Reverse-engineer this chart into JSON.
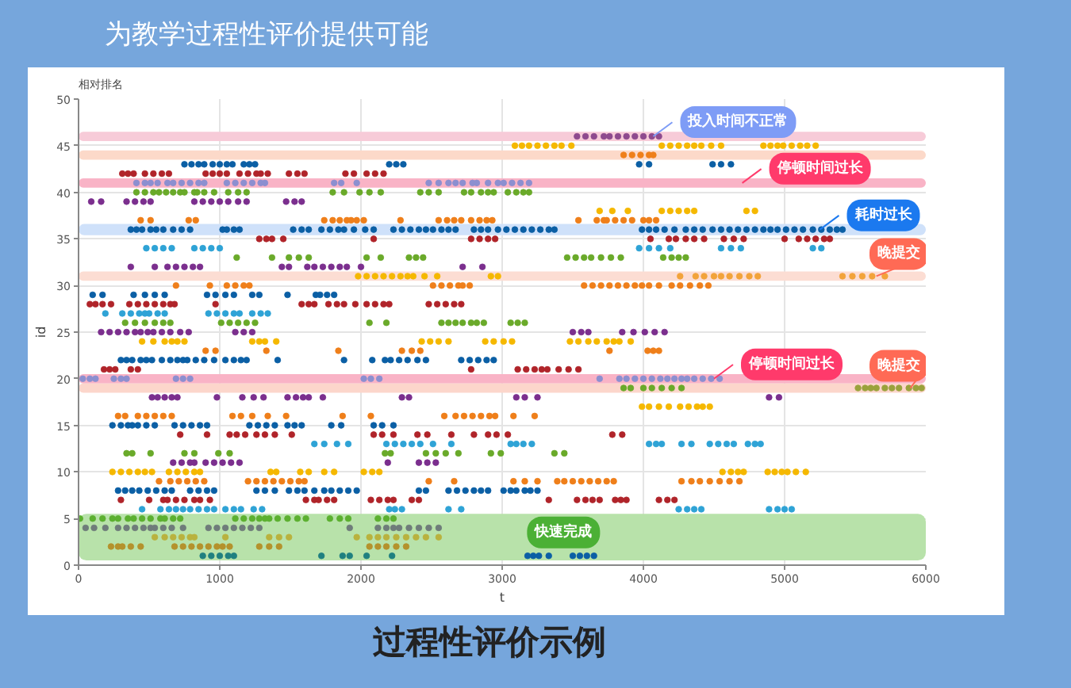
{
  "chart_data": {
    "type": "scatter",
    "title": "为教学过程性评价提供可能",
    "subtitle": "相对排名",
    "xlabel": "t",
    "ylabel": "id",
    "xlim": [
      0,
      6000
    ],
    "ylim": [
      0,
      50
    ],
    "xticks": [
      0,
      1000,
      2000,
      3000,
      4000,
      5000,
      6000
    ],
    "yticks": [
      0,
      5,
      10,
      15,
      20,
      25,
      30,
      35,
      40,
      45,
      50
    ],
    "grid": true,
    "marker": "circle",
    "bands": [
      {
        "axis": "y",
        "from": 45.5,
        "to": 46.5,
        "color": "#f7cbd8"
      },
      {
        "axis": "y",
        "from": 43.5,
        "to": 44.5,
        "color": "#fcd9c9"
      },
      {
        "axis": "y",
        "from": 40.5,
        "to": 41.5,
        "color": "#f9b3c6"
      },
      {
        "axis": "y",
        "from": 35.4,
        "to": 36.6,
        "color": "#cfe1fa"
      },
      {
        "axis": "y",
        "from": 30.5,
        "to": 31.5,
        "color": "#fcddd3"
      },
      {
        "axis": "y",
        "from": 19.5,
        "to": 20.5,
        "color": "#f9b3c6"
      },
      {
        "axis": "y",
        "from": 18.5,
        "to": 19.5,
        "color": "#fcd6cb"
      },
      {
        "axis": "y",
        "from": 0.5,
        "to": 5.5,
        "color": "#b8e2aa",
        "label": "快速完成"
      }
    ],
    "annotations": [
      {
        "text": "投入时间不正常",
        "x": 4070,
        "y": 46
      },
      {
        "text": "停顿时间过长",
        "x": 4700,
        "y": 41
      },
      {
        "text": "耗时过长",
        "x": 5250,
        "y": 36
      },
      {
        "text": "晚提交",
        "x": 5650,
        "y": 31
      },
      {
        "text": "停顿时间过长",
        "x": 4500,
        "y": 20
      },
      {
        "text": "晚提交",
        "x": 5890,
        "y": 19
      },
      "过程性评价示例"
    ],
    "series": [
      {
        "color": "#8e4a8e",
        "x": [
          3530,
          3590,
          3650,
          3720,
          3760,
          3820,
          3880,
          3940,
          4000,
          4060,
          4110
        ],
        "values": [
          46,
          46,
          46,
          46,
          46,
          46,
          46,
          46,
          46,
          46,
          46
        ]
      },
      {
        "color": "#f5b800",
        "x": [
          3090,
          3140,
          3190,
          3250,
          3310,
          3370,
          3420,
          3490,
          4130,
          4190,
          4250,
          4310,
          4360,
          4410,
          4480,
          4550,
          4850,
          4900,
          4950,
          4990,
          5050,
          5110,
          5160,
          5220
        ],
        "values": [
          45,
          45,
          45,
          45,
          45,
          45,
          45,
          45,
          45,
          45,
          45,
          45,
          45,
          45,
          45,
          45,
          45,
          45,
          45,
          45,
          45,
          45,
          45,
          45
        ]
      },
      {
        "color": "#ef7f1a",
        "x": [
          3860,
          3920,
          3980,
          4040,
          4070
        ],
        "values": [
          44,
          44,
          44,
          44,
          44
        ]
      },
      {
        "color": "#0b5fa5",
        "x": [
          750,
          800,
          850,
          890,
          950,
          1000,
          1050,
          1090,
          1170,
          1210,
          1250,
          2200,
          2250,
          2300,
          3970,
          4040,
          4490,
          4550,
          4620
        ],
        "values": [
          43,
          43,
          43,
          43,
          43,
          43,
          43,
          43,
          43,
          43,
          43,
          43,
          43,
          43,
          43,
          43,
          43,
          43,
          43
        ]
      },
      {
        "color": "#b0242a",
        "x": [
          310,
          350,
          390,
          470,
          530,
          590,
          640,
          900,
          950,
          1000,
          1050,
          1140,
          1200,
          1260,
          1290,
          1340,
          1490,
          1550,
          1600,
          1890,
          1950,
          2040,
          2100,
          2160
        ],
        "values": [
          42,
          42,
          42,
          42,
          42,
          42,
          42,
          42,
          42,
          42,
          42,
          42,
          42,
          42,
          42,
          42,
          42,
          42,
          42,
          42,
          42,
          42,
          42,
          42
        ]
      },
      {
        "color": "#8c8fd0",
        "x": [
          410,
          470,
          510,
          560,
          630,
          670,
          730,
          790,
          850,
          890,
          1050,
          1110,
          1170,
          1230,
          1290,
          1320,
          1810,
          1860,
          1970,
          2480,
          2550,
          2620,
          2670,
          2720,
          2790,
          2820,
          2900,
          2970,
          3010,
          3070,
          3130,
          3190
        ],
        "values": [
          41,
          41,
          41,
          41,
          41,
          41,
          41,
          41,
          41,
          41,
          41,
          41,
          41,
          41,
          41,
          41,
          41,
          41,
          41,
          41,
          41,
          41,
          41,
          41,
          41,
          41,
          41,
          41,
          41,
          41,
          41,
          41
        ]
      },
      {
        "color": "#6aaa2a",
        "x": [
          410,
          470,
          530,
          570,
          620,
          670,
          720,
          750,
          820,
          840,
          890,
          960,
          1060,
          1130,
          1190,
          1800,
          1880,
          1990,
          2060,
          2140,
          2420,
          2480,
          2550,
          2730,
          2780,
          2850,
          2900,
          2940,
          3040,
          3100,
          3150,
          3190
        ],
        "values": [
          40,
          40,
          40,
          40,
          40,
          40,
          40,
          40,
          40,
          40,
          40,
          40,
          40,
          40,
          40,
          40,
          40,
          40,
          40,
          40,
          40,
          40,
          40,
          40,
          40,
          40,
          40,
          40,
          40,
          40,
          40,
          40
        ]
      },
      {
        "color": "#7b2f8e",
        "x": [
          90,
          160,
          340,
          400,
          460,
          510,
          820,
          880,
          940,
          1000,
          1060,
          1130,
          1190,
          1470,
          1530,
          1580
        ],
        "values": [
          39,
          39,
          39,
          39,
          39,
          39,
          39,
          39,
          39,
          39,
          39,
          39,
          39,
          39,
          39,
          39
        ]
      },
      {
        "color": "#f5b800",
        "x": [
          3690,
          3780,
          3890,
          4130,
          4190,
          4250,
          4310,
          4360,
          4730,
          4790
        ],
        "values": [
          38,
          38,
          38,
          38,
          38,
          38,
          38,
          38,
          38,
          38
        ]
      },
      {
        "color": "#ef7f1a",
        "x": [
          440,
          510,
          780,
          830,
          1740,
          1800,
          1850,
          1900,
          1930,
          1970,
          2020,
          2280,
          2550,
          2610,
          2660,
          2710,
          2780,
          2840,
          2890,
          2930,
          3540,
          3670,
          3720,
          3740,
          3800,
          3860,
          3920,
          4000,
          4040,
          4090
        ],
        "values": [
          37,
          37,
          37,
          37,
          37,
          37,
          37,
          37,
          37,
          37,
          37,
          37,
          37,
          37,
          37,
          37,
          37,
          37,
          37,
          37,
          37,
          37,
          37,
          37,
          37,
          37,
          37,
          37,
          37,
          37
        ]
      },
      {
        "color": "#0b5fa5",
        "x": [
          370,
          410,
          450,
          510,
          550,
          600,
          670,
          730,
          790,
          1020,
          1050,
          1100,
          1140,
          1520,
          1580,
          1630,
          1720,
          1780,
          1840,
          1880,
          1950,
          2030,
          2090,
          2230,
          2290,
          2350,
          2410,
          2460,
          2510,
          2570,
          2620,
          2670,
          2800,
          2850,
          2900,
          2970,
          3030,
          3090,
          3150,
          3210,
          3270,
          3330,
          3370,
          3990,
          4040,
          4090,
          4150,
          4220,
          4300,
          4360,
          4420,
          4490,
          4550,
          4610,
          4670,
          4730,
          4790,
          4850,
          4900,
          4950,
          5010,
          5070,
          5130,
          5200,
          5260,
          5320,
          5370,
          5410
        ],
        "values": [
          36,
          36,
          36,
          36,
          36,
          36,
          36,
          36,
          36,
          36,
          36,
          36,
          36,
          36,
          36,
          36,
          36,
          36,
          36,
          36,
          36,
          36,
          36,
          36,
          36,
          36,
          36,
          36,
          36,
          36,
          36,
          36,
          36,
          36,
          36,
          36,
          36,
          36,
          36,
          36,
          36,
          36,
          36,
          36,
          36,
          36,
          36,
          36,
          36,
          36,
          36,
          36,
          36,
          36,
          36,
          36,
          36,
          36,
          36,
          36,
          36,
          36,
          36,
          36,
          36,
          36,
          36,
          36
        ]
      },
      {
        "color": "#b0242a",
        "x": [
          1280,
          1330,
          1370,
          1450,
          2090,
          2780,
          2840,
          2900,
          2950,
          4050,
          4180,
          4230,
          4300,
          4360,
          4430,
          4570,
          4640,
          4710,
          5000,
          5100,
          5160,
          5220,
          5280,
          5320
        ],
        "values": [
          35,
          35,
          35,
          35,
          35,
          35,
          35,
          35,
          35,
          35,
          35,
          35,
          35,
          35,
          35,
          35,
          35,
          35,
          35,
          35,
          35,
          35,
          35,
          35
        ]
      },
      {
        "color": "#2fa3d6",
        "x": [
          480,
          540,
          600,
          660,
          820,
          880,
          940,
          1000,
          3970,
          4040,
          4110,
          4190,
          4550,
          4620,
          4690,
          5200,
          5260
        ],
        "values": [
          34,
          34,
          34,
          34,
          34,
          34,
          34,
          34,
          34,
          34,
          34,
          34,
          34,
          34,
          34,
          34,
          34
        ]
      },
      {
        "color": "#6aaa2a",
        "x": [
          1120,
          1370,
          1490,
          1560,
          1630,
          2040,
          2140,
          2340,
          2390,
          2440,
          3460,
          3520,
          3580,
          3630,
          3700,
          3770,
          3840,
          4140,
          4200,
          4250,
          4300
        ],
        "values": [
          33,
          33,
          33,
          33,
          33,
          33,
          33,
          33,
          33,
          33,
          33,
          33,
          33,
          33,
          33,
          33,
          33,
          33,
          33,
          33,
          33
        ]
      },
      {
        "color": "#7b2f8e",
        "x": [
          370,
          540,
          630,
          690,
          750,
          810,
          860,
          1440,
          1490,
          1620,
          1670,
          1730,
          1790,
          1850,
          1900,
          2000,
          2720,
          2860
        ],
        "values": [
          32,
          32,
          32,
          32,
          32,
          32,
          32,
          32,
          32,
          32,
          32,
          32,
          32,
          32,
          32,
          32,
          32,
          32
        ]
      },
      {
        "color": "#f5b800",
        "x": [
          1980,
          2040,
          2100,
          2160,
          2220,
          2280,
          2330,
          2370,
          2450,
          2540,
          2920,
          2970
        ],
        "values": [
          31,
          31,
          31,
          31,
          31,
          31,
          31,
          31,
          31,
          31,
          31,
          31
        ]
      },
      {
        "color": "#f2a33a",
        "x": [
          4260,
          4370,
          4430,
          4500,
          4550,
          4610,
          4680,
          4750,
          4810,
          5410,
          5480,
          5550,
          5620,
          5710
        ],
        "values": [
          31,
          31,
          31,
          31,
          31,
          31,
          31,
          31,
          31,
          31,
          31,
          31,
          31,
          31
        ]
      },
      {
        "color": "#ef7f1a",
        "x": [
          690,
          930,
          1050,
          1110,
          1170,
          1210,
          2510,
          2570,
          2630,
          2690,
          2720,
          2770,
          3580,
          3640,
          3700,
          3760,
          3820,
          3880,
          3940,
          3990,
          4040,
          4110,
          4200,
          4260,
          4330,
          4400,
          4460
        ],
        "values": [
          30,
          30,
          30,
          30,
          30,
          30,
          30,
          30,
          30,
          30,
          30,
          30,
          30,
          30,
          30,
          30,
          30,
          30,
          30,
          30,
          30,
          30,
          30,
          30,
          30,
          30,
          30
        ]
      },
      {
        "color": "#0b5fa5",
        "x": [
          100,
          170,
          390,
          470,
          540,
          610,
          910,
          970,
          1040,
          1100,
          1230,
          1280,
          1480,
          1680,
          1710,
          1760,
          1810
        ],
        "values": [
          29,
          29,
          29,
          29,
          29,
          29,
          29,
          29,
          29,
          29,
          29,
          29,
          29,
          29,
          29,
          29,
          29
        ]
      },
      {
        "color": "#b0242a",
        "x": [
          80,
          120,
          170,
          230,
          360,
          420,
          480,
          540,
          600,
          650,
          680,
          970,
          1580,
          1630,
          1670,
          1770,
          1830,
          1880,
          1960,
          2040,
          2100,
          2160,
          2200,
          2480,
          2540,
          2600,
          2660,
          2710
        ],
        "values": [
          28,
          28,
          28,
          28,
          28,
          28,
          28,
          28,
          28,
          28,
          28,
          28,
          28,
          28,
          28,
          28,
          28,
          28,
          28,
          28,
          28,
          28,
          28,
          28,
          28,
          28,
          28,
          28
        ]
      },
      {
        "color": "#2fa3d6",
        "x": [
          190,
          310,
          370,
          430,
          470,
          500,
          560,
          610,
          920,
          980,
          1040,
          1100,
          1140,
          1230,
          1290,
          1340
        ],
        "values": [
          27,
          27,
          27,
          27,
          27,
          27,
          27,
          27,
          27,
          27,
          27,
          27,
          27,
          27,
          27,
          27
        ]
      },
      {
        "color": "#6aaa2a",
        "x": [
          330,
          400,
          470,
          540,
          600,
          650,
          1010,
          1070,
          1130,
          1190,
          1250,
          2060,
          2180,
          2570,
          2620,
          2670,
          2720,
          2780,
          2820,
          2870,
          3060,
          3110,
          3160
        ],
        "values": [
          26,
          26,
          26,
          26,
          26,
          26,
          26,
          26,
          26,
          26,
          26,
          26,
          26,
          26,
          26,
          26,
          26,
          26,
          26,
          26,
          26,
          26,
          26
        ]
      },
      {
        "color": "#7b2f8e",
        "x": [
          160,
          220,
          280,
          340,
          400,
          440,
          490,
          530,
          590,
          650,
          720,
          780,
          1110,
          1170,
          1230,
          3500,
          3560,
          3610,
          3850,
          3930,
          4010,
          4080,
          4150
        ],
        "values": [
          25,
          25,
          25,
          25,
          25,
          25,
          25,
          25,
          25,
          25,
          25,
          25,
          25,
          25,
          25,
          25,
          25,
          25,
          25,
          25,
          25,
          25,
          25
        ]
      },
      {
        "color": "#f5b800",
        "x": [
          450,
          530,
          610,
          660,
          700,
          750,
          1230,
          1280,
          1320,
          1400,
          2430,
          2490,
          2550,
          2620,
          2880,
          2940,
          3010,
          3070,
          3480,
          3540,
          3610,
          3670,
          3740,
          3790,
          3830,
          3910
        ],
        "values": [
          24,
          24,
          24,
          24,
          24,
          24,
          24,
          24,
          24,
          24,
          24,
          24,
          24,
          24,
          24,
          24,
          24,
          24,
          24,
          24,
          24,
          24,
          24,
          24,
          24,
          24
        ]
      },
      {
        "color": "#ef7f1a",
        "x": [
          900,
          970,
          1330,
          1840,
          2290,
          2360,
          2420,
          3760,
          4030,
          4070,
          4110
        ],
        "values": [
          23,
          23,
          23,
          23,
          23,
          23,
          23,
          23,
          23,
          23,
          23
        ]
      },
      {
        "color": "#0b5fa5",
        "x": [
          300,
          340,
          380,
          440,
          480,
          520,
          590,
          650,
          700,
          740,
          770,
          830,
          890,
          960,
          1040,
          1100,
          1150,
          1190,
          1410,
          1880,
          2080,
          2170,
          2210,
          2270,
          2330,
          2400,
          2460,
          2710,
          2770,
          2830,
          2890,
          2940
        ],
        "values": [
          22,
          22,
          22,
          22,
          22,
          22,
          22,
          22,
          22,
          22,
          22,
          22,
          22,
          22,
          22,
          22,
          22,
          22,
          22,
          22,
          22,
          22,
          22,
          22,
          22,
          22,
          22,
          22,
          22,
          22,
          22,
          22
        ]
      },
      {
        "color": "#b0242a",
        "x": [
          180,
          220,
          260,
          370,
          420,
          2780,
          3110,
          3170,
          3230,
          3280,
          3320,
          3400,
          3470,
          3540
        ],
        "values": [
          21,
          21,
          21,
          21,
          21,
          21,
          21,
          21,
          21,
          21,
          21,
          21,
          21,
          21
        ]
      },
      {
        "color": "#8c8fd0",
        "x": [
          30,
          80,
          120,
          250,
          300,
          340,
          690,
          740,
          790,
          2020,
          2070,
          2130,
          3690,
          3830,
          3880,
          3940,
          4000,
          4060,
          4120,
          4170,
          4220,
          4270,
          4310,
          4360,
          4420,
          4480,
          4540
        ],
        "values": [
          20,
          20,
          20,
          20,
          20,
          20,
          20,
          20,
          20,
          20,
          20,
          20,
          20,
          20,
          20,
          20,
          20,
          20,
          20,
          20,
          20,
          20,
          20,
          20,
          20,
          20,
          20
        ]
      },
      {
        "color": "#6aaa2a",
        "x": [
          3860,
          3910,
          4000,
          4060,
          4130,
          4200,
          4270
        ],
        "values": [
          19,
          19,
          19,
          19,
          19,
          19,
          19
        ]
      },
      {
        "color": "#9aa23c",
        "x": [
          5520,
          5570,
          5610,
          5650,
          5710,
          5760,
          5810,
          5880,
          5930,
          5970
        ],
        "values": [
          19,
          19,
          19,
          19,
          19,
          19,
          19,
          19,
          19,
          19
        ]
      },
      {
        "color": "#7b2f8e",
        "x": [
          520,
          560,
          610,
          660,
          700,
          980,
          1160,
          1240,
          1310,
          1480,
          1540,
          1590,
          1630,
          1730,
          2290,
          2340,
          3100,
          3160,
          3250,
          4890,
          4960
        ],
        "values": [
          18,
          18,
          18,
          18,
          18,
          18,
          18,
          18,
          18,
          18,
          18,
          18,
          18,
          18,
          18,
          18,
          18,
          18,
          18,
          18,
          18
        ]
      },
      {
        "color": "#f5b800",
        "x": [
          3990,
          4040,
          4110,
          4180,
          4260,
          4320,
          4380,
          4420,
          4470
        ],
        "values": [
          17,
          17,
          17,
          17,
          17,
          17,
          17,
          17,
          17
        ]
      },
      {
        "color": "#ef7f1a",
        "x": [
          280,
          330,
          420,
          480,
          540,
          600,
          660,
          1090,
          1150,
          1230,
          1340,
          1470,
          1870,
          2070,
          2590,
          2670,
          2730,
          2790,
          2850,
          2910,
          2950,
          3080,
          3230
        ],
        "values": [
          16,
          16,
          16,
          16,
          16,
          16,
          16,
          16,
          16,
          16,
          16,
          16,
          16,
          16,
          16,
          16,
          16,
          16,
          16,
          16,
          16,
          16,
          16
        ]
      },
      {
        "color": "#0b5fa5",
        "x": [
          240,
          300,
          350,
          380,
          420,
          480,
          540,
          680,
          740,
          800,
          860,
          910,
          1210,
          1270,
          1330,
          1390,
          1480,
          1530,
          1580,
          1790,
          1860,
          2090,
          2150,
          2230
        ],
        "values": [
          15,
          15,
          15,
          15,
          15,
          15,
          15,
          15,
          15,
          15,
          15,
          15,
          15,
          15,
          15,
          15,
          15,
          15,
          15,
          15,
          15,
          15,
          15,
          15
        ]
      },
      {
        "color": "#b0242a",
        "x": [
          720,
          910,
          1070,
          1120,
          1180,
          1260,
          1320,
          1390,
          1510,
          2090,
          2150,
          2230,
          2400,
          2470,
          2640,
          2800,
          2900,
          2960,
          3040,
          3780,
          3850
        ],
        "values": [
          14,
          14,
          14,
          14,
          14,
          14,
          14,
          14,
          14,
          14,
          14,
          14,
          14,
          14,
          14,
          14,
          14,
          14,
          14,
          14,
          14
        ]
      },
      {
        "color": "#2fa3d6",
        "x": [
          1670,
          1740,
          1830,
          1910,
          2180,
          2240,
          2300,
          2360,
          2420,
          2510,
          2640,
          3060,
          3100,
          3150,
          3210,
          4040,
          4090,
          4130,
          4270,
          4340,
          4470,
          4530,
          4590,
          4640,
          4740,
          4790,
          4830
        ],
        "values": [
          13,
          13,
          13,
          13,
          13,
          13,
          13,
          13,
          13,
          13,
          13,
          13,
          13,
          13,
          13,
          13,
          13,
          13,
          13,
          13,
          13,
          13,
          13,
          13,
          13,
          13,
          13
        ]
      },
      {
        "color": "#6aaa2a",
        "x": [
          340,
          380,
          510,
          750,
          820,
          990,
          1070,
          2170,
          2210,
          2460,
          2530,
          2600,
          2690,
          2920,
          2990,
          3370,
          3440
        ],
        "values": [
          12,
          12,
          12,
          12,
          12,
          12,
          12,
          12,
          12,
          12,
          12,
          12,
          12,
          12,
          12,
          12,
          12
        ]
      },
      {
        "color": "#7b2f8e",
        "x": [
          670,
          730,
          790,
          820,
          900,
          960,
          1020,
          1080,
          1140,
          2190,
          2410,
          2470,
          2530
        ],
        "values": [
          11,
          11,
          11,
          11,
          11,
          11,
          11,
          11,
          11,
          11,
          11,
          11,
          11
        ]
      },
      {
        "color": "#f5b800",
        "x": [
          240,
          300,
          360,
          420,
          470,
          520,
          640,
          700,
          760,
          820,
          860,
          1360,
          1400,
          1570,
          1630,
          1740,
          1810,
          2020,
          2080,
          2130,
          4560,
          4620,
          4670,
          4710,
          4880,
          4930,
          4980,
          5020,
          5080,
          5150
        ],
        "values": [
          10,
          10,
          10,
          10,
          10,
          10,
          10,
          10,
          10,
          10,
          10,
          10,
          10,
          10,
          10,
          10,
          10,
          10,
          10,
          10,
          10,
          10,
          10,
          10,
          10,
          10,
          10,
          10,
          10,
          10
        ]
      },
      {
        "color": "#ef7f1a",
        "x": [
          570,
          650,
          710,
          770,
          830,
          890,
          1200,
          1260,
          1320,
          1380,
          1440,
          1500,
          1560,
          1600,
          2480,
          2660,
          3080,
          3160,
          3250,
          3390,
          3440,
          3500,
          3560,
          3620,
          3680,
          3740,
          3790,
          4270,
          4340,
          4400,
          4470,
          4540,
          4610,
          4680
        ],
        "values": [
          9,
          9,
          9,
          9,
          9,
          9,
          9,
          9,
          9,
          9,
          9,
          9,
          9,
          9,
          9,
          9,
          9,
          9,
          9,
          9,
          9,
          9,
          9,
          9,
          9,
          9,
          9,
          9,
          9,
          9,
          9,
          9,
          9,
          9
        ]
      },
      {
        "color": "#0b5fa5",
        "x": [
          280,
          330,
          380,
          430,
          490,
          550,
          610,
          660,
          790,
          850,
          910,
          960,
          1260,
          1320,
          1390,
          1490,
          1550,
          1600,
          1670,
          1740,
          1790,
          1850,
          1910,
          1970,
          2410,
          2460,
          2620,
          2680,
          2740,
          2800,
          2850,
          2900,
          3010,
          3060,
          3100,
          3160,
          3200,
          3250
        ],
        "values": [
          8,
          8,
          8,
          8,
          8,
          8,
          8,
          8,
          8,
          8,
          8,
          8,
          8,
          8,
          8,
          8,
          8,
          8,
          8,
          8,
          8,
          8,
          8,
          8,
          8,
          8,
          8,
          8,
          8,
          8,
          8,
          8,
          8,
          8,
          8,
          8,
          8,
          8
        ]
      },
      {
        "color": "#b0242a",
        "x": [
          300,
          500,
          600,
          630,
          690,
          750,
          820,
          860,
          930,
          1610,
          1670,
          1700,
          1760,
          1810,
          2070,
          2130,
          2190,
          2230,
          2360,
          2410,
          3330,
          3530,
          3590,
          3640,
          3690,
          3800,
          3840,
          3880,
          4110,
          4170,
          4220
        ],
        "values": [
          7,
          7,
          7,
          7,
          7,
          7,
          7,
          7,
          7,
          7,
          7,
          7,
          7,
          7,
          7,
          7,
          7,
          7,
          7,
          7,
          7,
          7,
          7,
          7,
          7,
          7,
          7,
          7,
          7,
          7,
          7
        ]
      },
      {
        "color": "#2fa3d6",
        "x": [
          450,
          580,
          640,
          690,
          740,
          790,
          850,
          910,
          960,
          1040,
          1100,
          1150,
          1240,
          1300,
          2200,
          2240,
          2290,
          2620,
          2710,
          4250,
          4310,
          4360,
          4410,
          4890,
          4950,
          5000,
          5050
        ],
        "values": [
          6,
          6,
          6,
          6,
          6,
          6,
          6,
          6,
          6,
          6,
          6,
          6,
          6,
          6,
          6,
          6,
          6,
          6,
          6,
          6,
          6,
          6,
          6,
          6,
          6,
          6,
          6
        ]
      },
      {
        "color": "#5cb030",
        "x": [
          10,
          100,
          170,
          240,
          280,
          350,
          390,
          450,
          510,
          580,
          610,
          670,
          720,
          1110,
          1170,
          1230,
          1280,
          1320,
          1350,
          1410,
          1480,
          1550,
          1610,
          1780,
          1850,
          1910,
          2120,
          2180,
          2230
        ],
        "values": [
          5,
          5,
          5,
          5,
          5,
          5,
          5,
          5,
          5,
          5,
          5,
          5,
          5,
          5,
          5,
          5,
          5,
          5,
          5,
          5,
          5,
          5,
          5,
          5,
          5,
          5,
          5,
          5,
          5
        ]
      },
      {
        "color": "#6f7c7a",
        "x": [
          50,
          110,
          190,
          280,
          340,
          400,
          460,
          510,
          540,
          600,
          660,
          740,
          920,
          980,
          1040,
          1100,
          1160,
          1220,
          1280,
          1920,
          2120,
          2180,
          2230,
          2270,
          2340,
          2410,
          2480,
          2550
        ],
        "values": [
          4,
          4,
          4,
          4,
          4,
          4,
          4,
          4,
          4,
          4,
          4,
          4,
          4,
          4,
          4,
          4,
          4,
          4,
          4,
          4,
          4,
          4,
          4,
          4,
          4,
          4,
          4,
          4
        ]
      },
      {
        "color": "#b9b23e",
        "x": [
          540,
          610,
          670,
          730,
          790,
          820,
          1040,
          1350,
          1420,
          1490,
          1970,
          2060,
          2120,
          2180,
          2250,
          2320,
          2390,
          2460,
          2550
        ],
        "values": [
          3,
          3,
          3,
          3,
          3,
          3,
          3,
          3,
          3,
          3,
          3,
          3,
          3,
          3,
          3,
          3,
          3,
          3,
          3
        ]
      },
      {
        "color": "#b4922c",
        "x": [
          230,
          280,
          310,
          370,
          440,
          680,
          740,
          800,
          860,
          920,
          980,
          1020,
          1070,
          1280,
          1350,
          1420,
          2060,
          2120,
          2180,
          2250,
          2320
        ],
        "values": [
          2,
          2,
          2,
          2,
          2,
          2,
          2,
          2,
          2,
          2,
          2,
          2,
          2,
          2,
          2,
          2,
          2,
          2,
          2,
          2,
          2
        ]
      },
      {
        "color": "#1f8080",
        "x": [
          880,
          940,
          1000,
          1060,
          1100,
          1720,
          1870,
          1920,
          2040,
          2220
        ],
        "values": [
          1,
          1,
          1,
          1,
          1,
          1,
          1,
          1,
          1,
          1
        ]
      },
      {
        "color": "#0b5fa5",
        "x": [
          3180,
          3220,
          3260,
          3330,
          3500,
          3550,
          3600,
          3650
        ],
        "values": [
          1,
          1,
          1,
          1,
          1,
          1,
          1,
          1
        ]
      }
    ]
  }
}
